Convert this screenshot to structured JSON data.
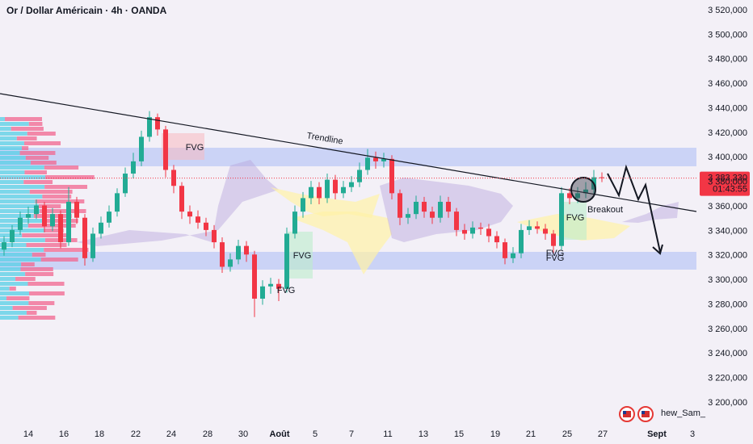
{
  "chart_data": {
    "type": "candlestick",
    "title": "Or / Dollar Américain · 4h · OANDA",
    "open": [
      3325,
      3331,
      3341,
      3351,
      3354,
      3361,
      3344,
      3354,
      3331,
      3364,
      3351,
      3318,
      3338,
      3347,
      3356,
      3371,
      3387,
      3397,
      3417,
      3433,
      3423,
      3390,
      3377,
      3356,
      3352,
      3347,
      3341,
      3331,
      3311,
      3317,
      3328,
      3321,
      3285,
      3295,
      3297,
      3293,
      3338,
      3356,
      3367,
      3376,
      3367,
      3382,
      3371,
      3376,
      3380,
      3390,
      3400,
      3397,
      3399,
      3371,
      3351,
      3354,
      3364,
      3356,
      3351,
      3364,
      3356,
      3341,
      3338,
      3343,
      3342,
      3336,
      3331,
      3318,
      3322,
      3341,
      3344,
      3342,
      3338,
      3328,
      3371,
      3367,
      3371,
      3374,
      3384
    ],
    "high": [
      3336,
      3345,
      3356,
      3360,
      3366,
      3364,
      3359,
      3357,
      3376,
      3368,
      3354,
      3343,
      3352,
      3361,
      3375,
      3392,
      3404,
      3422,
      3438,
      3436,
      3426,
      3394,
      3380,
      3361,
      3357,
      3351,
      3345,
      3335,
      3322,
      3333,
      3332,
      3324,
      3300,
      3302,
      3301,
      3343,
      3361,
      3372,
      3381,
      3380,
      3387,
      3386,
      3381,
      3385,
      3396,
      3407,
      3405,
      3404,
      3402,
      3374,
      3359,
      3369,
      3368,
      3360,
      3369,
      3368,
      3359,
      3346,
      3348,
      3347,
      3346,
      3340,
      3334,
      3327,
      3346,
      3349,
      3348,
      3346,
      3341,
      3376,
      3375,
      3376,
      3380,
      3390,
      3388
    ],
    "low": [
      3320,
      3327,
      3337,
      3346,
      3350,
      3339,
      3340,
      3326,
      3328,
      3346,
      3312,
      3315,
      3334,
      3343,
      3352,
      3368,
      3383,
      3393,
      3413,
      3418,
      3384,
      3371,
      3350,
      3346,
      3342,
      3336,
      3326,
      3306,
      3307,
      3313,
      3315,
      3270,
      3280,
      3289,
      3283,
      3290,
      3334,
      3351,
      3362,
      3362,
      3363,
      3366,
      3367,
      3372,
      3376,
      3386,
      3391,
      3392,
      3366,
      3345,
      3346,
      3350,
      3351,
      3346,
      3347,
      3351,
      3336,
      3333,
      3334,
      3337,
      3331,
      3326,
      3313,
      3314,
      3318,
      3337,
      3338,
      3333,
      3322,
      3325,
      3362,
      3363,
      3367,
      3370,
      3380
    ],
    "close": [
      3331,
      3341,
      3351,
      3354,
      3361,
      3344,
      3354,
      3331,
      3364,
      3351,
      3318,
      3338,
      3347,
      3356,
      3371,
      3387,
      3397,
      3417,
      3433,
      3423,
      3390,
      3377,
      3356,
      3352,
      3347,
      3341,
      3331,
      3311,
      3317,
      3328,
      3321,
      3285,
      3295,
      3297,
      3293,
      3338,
      3356,
      3367,
      3376,
      3367,
      3382,
      3371,
      3376,
      3380,
      3390,
      3400,
      3397,
      3399,
      3371,
      3351,
      3354,
      3364,
      3356,
      3351,
      3364,
      3356,
      3341,
      3338,
      3343,
      3342,
      3336,
      3331,
      3318,
      3322,
      3341,
      3344,
      3342,
      3338,
      3328,
      3371,
      3367,
      3371,
      3374,
      3384,
      3383.33
    ],
    "up_color": "#22ab94",
    "down_color": "#f23645",
    "ylim": [
      3186.2,
      3528.6
    ],
    "yticks": [
      {
        "value": 3520,
        "label": "3 520,000"
      },
      {
        "value": 3500,
        "label": "3 500,000"
      },
      {
        "value": 3480,
        "label": "3 480,000"
      },
      {
        "value": 3460,
        "label": "3 460,000"
      },
      {
        "value": 3440,
        "label": "3 440,000"
      },
      {
        "value": 3420,
        "label": "3 420,000"
      },
      {
        "value": 3400,
        "label": "3 400,000"
      },
      {
        "value": 3380,
        "label": "3 380,000"
      },
      {
        "value": 3360,
        "label": "3 360,000"
      },
      {
        "value": 3340,
        "label": "3 340,000"
      },
      {
        "value": 3320,
        "label": "3 320,000"
      },
      {
        "value": 3300,
        "label": "3 300,000"
      },
      {
        "value": 3280,
        "label": "3 280,000"
      },
      {
        "value": 3260,
        "label": "3 260,000"
      },
      {
        "value": 3240,
        "label": "3 240,000"
      },
      {
        "value": 3220,
        "label": "3 220,000"
      },
      {
        "value": 3200,
        "label": "3 200,000"
      }
    ],
    "x_labels": [
      "14",
      "16",
      "18",
      "22",
      "24",
      "28",
      "30",
      "Août",
      "5",
      "7",
      "11",
      "13",
      "15",
      "19",
      "21",
      "25",
      "27",
      "Sept",
      "3"
    ],
    "grid": false,
    "last_price": {
      "value": 3383.33,
      "label": "3 383,330"
    },
    "countdown": "01:43:55",
    "annotations": {
      "trendline": "Trendline",
      "breakout": "Breakout",
      "fvg": [
        "FVG",
        "FVG",
        "FVG",
        "FVG",
        "FVG",
        "FVG"
      ]
    }
  },
  "watermark": "hew_Sam_"
}
